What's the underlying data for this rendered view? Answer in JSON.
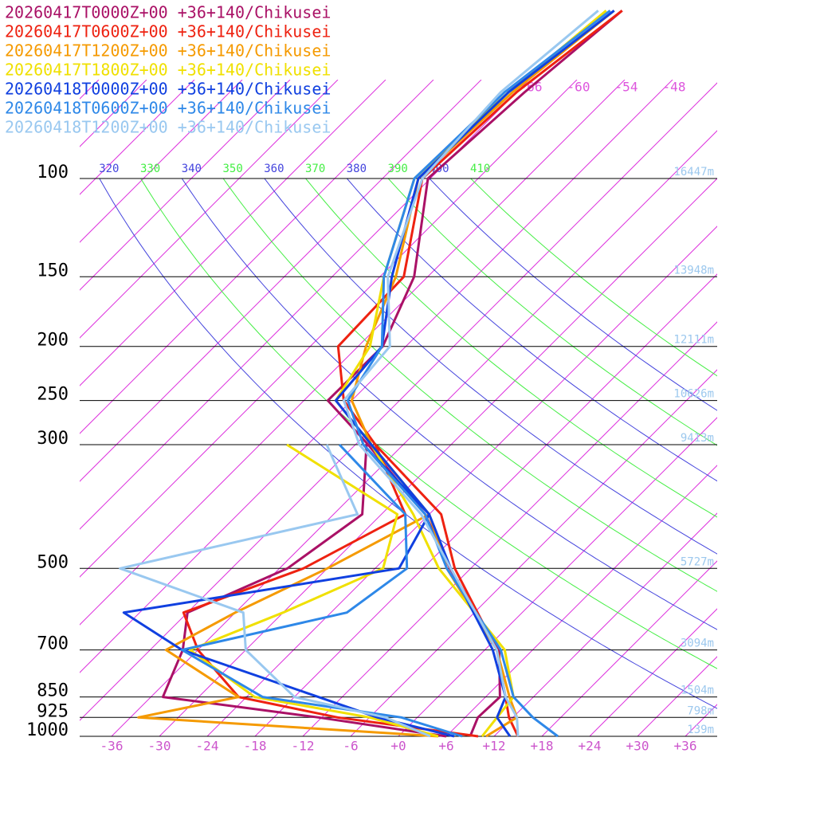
{
  "chart_data": {
    "type": "skewt",
    "series": [
      {
        "name": "20260417T0000Z+00 +36+140/Chikusei",
        "color": "#aa1166",
        "temperature": [
          9,
          7.6,
          7.8,
          1.8,
          -14.6,
          -24.5,
          -40.4,
          -51,
          -50.9,
          -55.7,
          -66.3,
          -65,
          -63
        ],
        "dewpoint": [
          6,
          -12.4,
          -34.5,
          -37.9,
          -42,
          -35,
          -32.4,
          -40.6
        ]
      },
      {
        "name": "20260417T0600Z+00 +36+140/Chikusei",
        "color": "#ee2211",
        "temperature": [
          15,
          11.5,
          8.5,
          1.5,
          -14,
          -22.5,
          -39.5,
          -49,
          -56.5,
          -57,
          -67,
          -66,
          -63
        ],
        "dewpoint": [
          10,
          -10,
          -25,
          -36,
          -42.5,
          -33,
          -27,
          -39.5
        ]
      },
      {
        "name": "20260417T1200Z+00 +36+140/Chikusei",
        "color": "#f59a00",
        "temperature": [
          11,
          12.5,
          9,
          1.5,
          -15,
          -24,
          -40,
          -48,
          -53,
          -58,
          -67.5,
          -66.5,
          -64
        ],
        "dewpoint": [
          5,
          -35,
          -25,
          -40,
          -36,
          -30,
          -24,
          -40
        ]
      },
      {
        "name": "20260417T1800Z+00 +36+140/Chikusei",
        "color": "#f0e000",
        "temperature": [
          10.5,
          10,
          9.5,
          2.5,
          -16,
          -26,
          -40,
          -50,
          -52.5,
          -59.5,
          -68,
          -67,
          -65
        ],
        "dewpoint": [
          5,
          -6,
          -23,
          -37,
          -30,
          -23,
          -28,
          -50.6
        ]
      },
      {
        "name": "20260418T0000Z+00 +36+140/Chikusei",
        "color": "#1040e0",
        "temperature": [
          14,
          10,
          8.5,
          1,
          -14.5,
          -24,
          -40,
          -50,
          -51,
          -58.5,
          -67.5,
          -67,
          -64
        ],
        "dewpoint": [
          7,
          -5,
          -15,
          -38,
          -50,
          -21,
          -24,
          -41
        ]
      },
      {
        "name": "20260418T0600Z+00 +36+140/Chikusei",
        "color": "#2e88e8",
        "temperature": [
          20,
          14.5,
          9.5,
          2,
          -15,
          -24.5,
          -41,
          -48.5,
          -51,
          -59.5,
          -68,
          -67.5,
          -64.5
        ],
        "dewpoint": [
          8,
          -2,
          -22,
          -38,
          -22,
          -20,
          -27,
          -44
        ]
      },
      {
        "name": "20260418T1200Z+00 +36+140/Chikusei",
        "color": "#99c8f0",
        "temperature": [
          15,
          12.5,
          8.5,
          1.5,
          -14.5,
          -25,
          -41.5,
          -49,
          -50,
          -59,
          -67,
          -68,
          -66
        ],
        "dewpoint": [
          4,
          -4,
          -18,
          -30,
          -35,
          -56,
          -33,
          -45.6
        ]
      }
    ],
    "profile_pressures": [
      1000,
      925,
      850,
      700,
      500,
      400,
      300,
      250,
      200,
      150,
      100,
      70,
      50
    ],
    "dewpoint_pressures": [
      1000,
      925,
      850,
      700,
      600,
      500,
      400,
      300
    ],
    "pressure_levels": [
      100,
      150,
      200,
      250,
      300,
      500,
      700,
      850,
      925,
      1000
    ],
    "heights": [
      "16447m",
      "13948m",
      "12111m",
      "10626m",
      "9413m",
      "5727m",
      "3094m",
      "1504m",
      "798m",
      "139m"
    ],
    "xticks": [
      -36,
      -30,
      -24,
      -18,
      -12,
      -6,
      {
        "value": 0,
        "label": "+0"
      },
      {
        "value": 6,
        "label": "+6"
      },
      {
        "value": 12,
        "label": "+12"
      },
      {
        "value": 18,
        "label": "+18"
      },
      {
        "value": 24,
        "label": "+24"
      },
      {
        "value": 30,
        "label": "+30"
      },
      {
        "value": 36,
        "label": "+36"
      }
    ],
    "top_isotherm_labels": [
      -66,
      -60,
      -54,
      -48
    ],
    "theta_labels": [
      320,
      330,
      340,
      350,
      360,
      370,
      380,
      390,
      400,
      410
    ]
  }
}
